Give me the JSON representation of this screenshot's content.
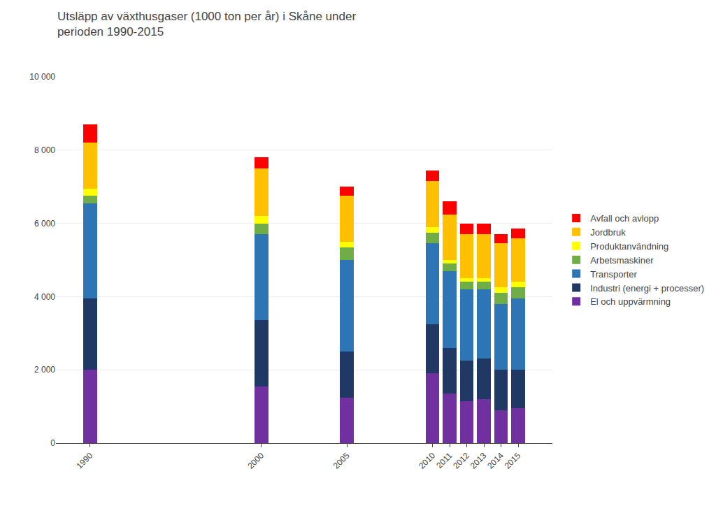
{
  "chart_data": {
    "type": "bar",
    "title": "Utsläpp av växthusgaser (1000 ton per år) i Skåne under\nperioden 1990-2015",
    "stacked": true,
    "x": [
      1990,
      2000,
      2005,
      2010,
      2011,
      2012,
      2013,
      2014,
      2015
    ],
    "xlim": [
      1988,
      2017
    ],
    "xticks": [
      1990,
      2000,
      2005,
      2010,
      2011,
      2012,
      2013,
      2014,
      2015
    ],
    "ylim": [
      0,
      10000
    ],
    "yticks": [
      0,
      {
        "value": 2000,
        "label": "2 000"
      },
      {
        "value": 4000,
        "label": "4 000"
      },
      {
        "value": 6000,
        "label": "6 000"
      },
      {
        "value": 8000,
        "label": "8 000"
      },
      {
        "value": 10000,
        "label": "10 000"
      }
    ],
    "grid": true,
    "legend": "right",
    "series": [
      {
        "name": "El och uppvärmning",
        "color": "#7030A0",
        "values": [
          2000,
          1550,
          1250,
          1900,
          1350,
          1150,
          1200,
          900,
          950
        ]
      },
      {
        "name": "Industri (energi + processer)",
        "color": "#1F3864",
        "values": [
          1950,
          1800,
          1250,
          1350,
          1250,
          1100,
          1100,
          1100,
          1050
        ]
      },
      {
        "name": "Transporter",
        "color": "#2E75B6",
        "values": [
          2600,
          2350,
          2500,
          2200,
          2100,
          1950,
          1900,
          1800,
          1950
        ]
      },
      {
        "name": "Arbetsmaskiner",
        "color": "#70AD47",
        "values": [
          200,
          300,
          350,
          300,
          200,
          200,
          200,
          300,
          300
        ]
      },
      {
        "name": "Produktanvändning",
        "color": "#FFFF00",
        "values": [
          200,
          200,
          150,
          150,
          100,
          100,
          100,
          150,
          150
        ]
      },
      {
        "name": "Jordbruk",
        "color": "#FFC000",
        "values": [
          1250,
          1300,
          1250,
          1250,
          1250,
          1200,
          1200,
          1200,
          1200
        ]
      },
      {
        "name": "Avfall och avlopp",
        "color": "#FF0000",
        "values": [
          500,
          300,
          250,
          300,
          350,
          300,
          300,
          250,
          250
        ]
      }
    ]
  }
}
